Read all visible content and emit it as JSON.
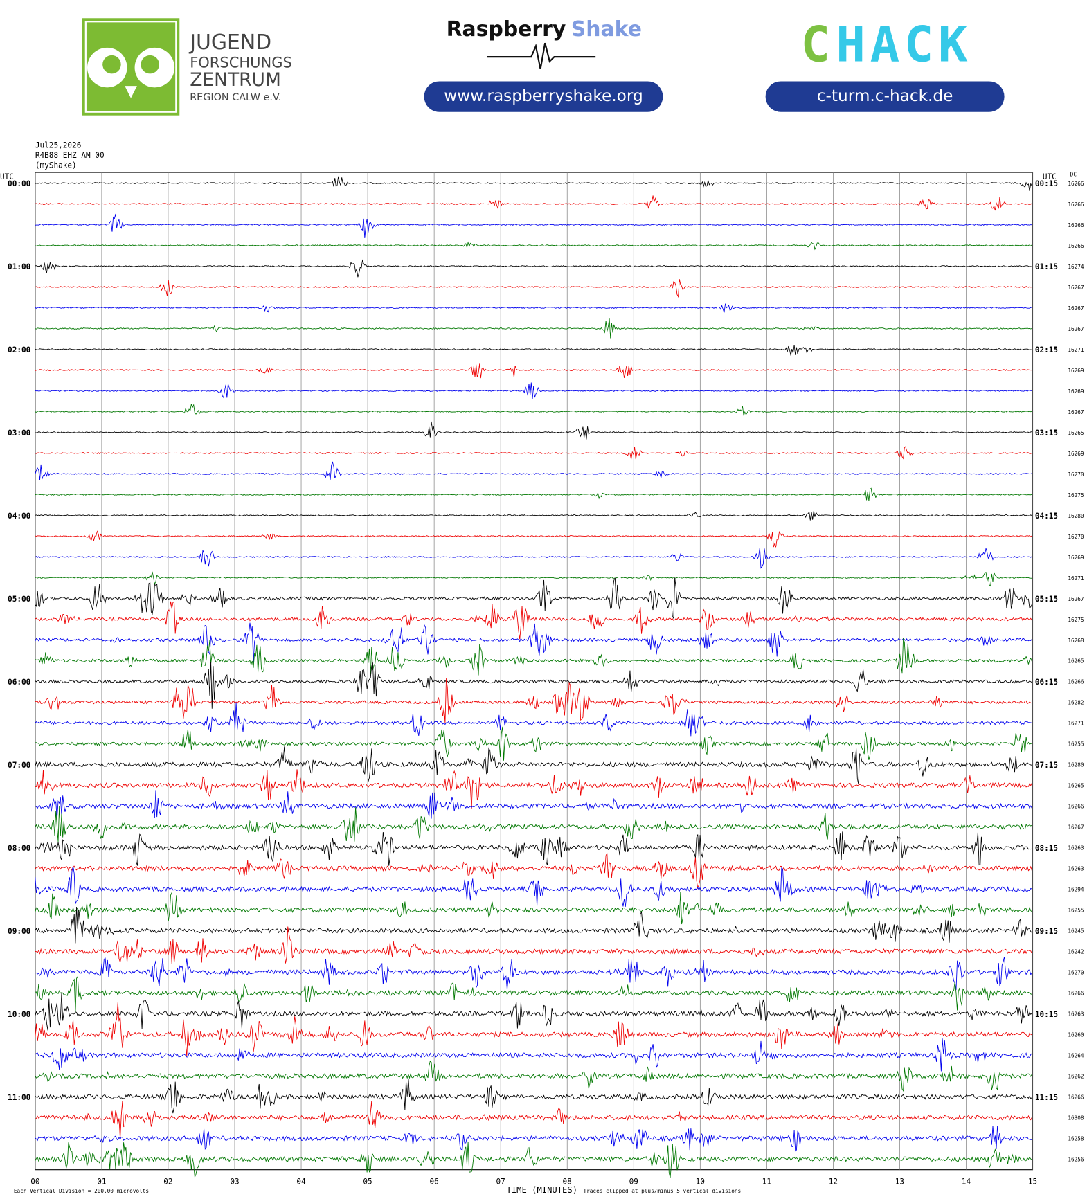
{
  "header": {
    "jfz_line1": "JUGEND",
    "jfz_line2": "FORSCHUNGS",
    "jfz_line3": "ZENTRUM",
    "jfz_line4": "REGION CALW e.V.",
    "rs_word1": "Raspberry",
    "rs_word2": "Shake",
    "rs_url": "www.raspberryshake.org",
    "chack_c": "C",
    "chack_rest": "HACK",
    "chack_url": "c-turm.c-hack.de"
  },
  "plot": {
    "date": "Jul25,2026",
    "station": "R4B88 EHZ AM 00",
    "source": "(myShake)",
    "left_axis_title": "UTC",
    "right_axis_title": "UTC",
    "dc_title": "DC",
    "left_labels": [
      "00:00",
      "01:00",
      "02:00",
      "03:00",
      "04:00",
      "05:00",
      "06:00",
      "07:00",
      "08:00",
      "09:00",
      "10:00",
      "11:00"
    ],
    "right_labels": [
      "00:15",
      "01:15",
      "02:15",
      "03:15",
      "04:15",
      "05:15",
      "06:15",
      "07:15",
      "08:15",
      "09:15",
      "10:15",
      "11:15"
    ],
    "dc_values": [
      16266,
      16266,
      16266,
      16266,
      16274,
      16267,
      16267,
      16267,
      16271,
      16269,
      16269,
      16267,
      16265,
      16269,
      16270,
      16275,
      16280,
      16270,
      16269,
      16271,
      16267,
      16275,
      16268,
      16265,
      16266,
      16282,
      16271,
      16255,
      16280,
      16265,
      16266,
      16267,
      16263,
      16263,
      16294,
      16255,
      16245,
      16242,
      16270,
      16266,
      16263,
      16260,
      16264,
      16262,
      16266,
      16308,
      16258,
      16256
    ],
    "x_labels": [
      "00",
      "01",
      "02",
      "03",
      "04",
      "05",
      "06",
      "07",
      "08",
      "09",
      "10",
      "11",
      "12",
      "13",
      "14",
      "15"
    ],
    "x_axis_title": "TIME (MINUTES)",
    "scale_note": "Each Vertical Division =  200.00 microvolts",
    "clip_note": "Traces clipped at plus/minus 5 vertical divisions"
  }
}
